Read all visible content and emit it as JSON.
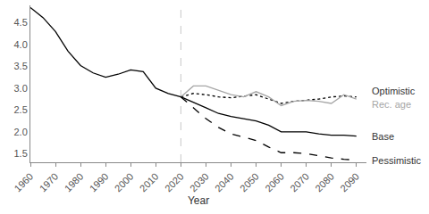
{
  "chart_data": {
    "type": "line",
    "x_label": "Year",
    "x": [
      1960,
      1965,
      1970,
      1975,
      1980,
      1985,
      1990,
      1995,
      2000,
      2005,
      2010,
      2015,
      2020,
      2025,
      2030,
      2035,
      2040,
      2045,
      2050,
      2055,
      2060,
      2065,
      2070,
      2075,
      2080,
      2085,
      2090
    ],
    "series": [
      {
        "color": "#000000",
        "line_style": "solid",
        "values": [
          4.85,
          4.62,
          4.3,
          3.85,
          3.52,
          3.35,
          3.25,
          3.32,
          3.42,
          3.38,
          3.0,
          2.88,
          2.8,
          null,
          null,
          null,
          null,
          null,
          null,
          null,
          null,
          null,
          null,
          null,
          null,
          null,
          null
        ]
      },
      {
        "name": "Optimistic",
        "color": "#000000",
        "line_style": "dotted",
        "values": [
          null,
          null,
          null,
          null,
          null,
          null,
          null,
          null,
          null,
          null,
          null,
          null,
          2.8,
          2.88,
          2.85,
          2.8,
          2.78,
          2.82,
          2.85,
          2.75,
          2.65,
          2.7,
          2.72,
          2.75,
          2.8,
          2.82,
          2.8
        ]
      },
      {
        "name": "Rec. age",
        "color": "#a6a6a6",
        "line_style": "solid",
        "values": [
          null,
          null,
          null,
          null,
          null,
          null,
          null,
          null,
          null,
          null,
          null,
          null,
          2.8,
          3.05,
          3.05,
          2.95,
          2.85,
          2.8,
          2.92,
          2.8,
          2.6,
          2.7,
          2.72,
          2.7,
          2.65,
          2.85,
          2.75
        ]
      },
      {
        "name": "Base",
        "color": "#000000",
        "line_style": "solid",
        "values": [
          null,
          null,
          null,
          null,
          null,
          null,
          null,
          null,
          null,
          null,
          null,
          null,
          2.8,
          2.68,
          2.55,
          2.42,
          2.35,
          2.3,
          2.25,
          2.15,
          2.0,
          2.0,
          2.0,
          1.95,
          1.92,
          1.92,
          1.9
        ]
      },
      {
        "name": "Pessimistic",
        "color": "#000000",
        "line_style": "dashed",
        "values": [
          null,
          null,
          null,
          null,
          null,
          null,
          null,
          null,
          null,
          null,
          null,
          null,
          2.8,
          2.55,
          2.3,
          2.1,
          1.95,
          1.88,
          1.8,
          1.65,
          1.52,
          1.52,
          1.5,
          1.45,
          1.4,
          1.37,
          1.35
        ]
      }
    ],
    "reference_x": 2020,
    "xlim": [
      1960,
      2094
    ],
    "xticks": [
      1960,
      1970,
      1980,
      1990,
      2000,
      2010,
      2020,
      2030,
      2040,
      2050,
      2060,
      2070,
      2080,
      2090
    ],
    "ylim": [
      1.3,
      4.9
    ],
    "yticks": [
      1.5,
      {
        "value": 2,
        "label": "2.0"
      },
      2.5,
      {
        "value": 3,
        "label": "3.0"
      },
      3.5,
      {
        "value": 4,
        "label": "4.0"
      },
      4.5
    ],
    "grid": false
  }
}
